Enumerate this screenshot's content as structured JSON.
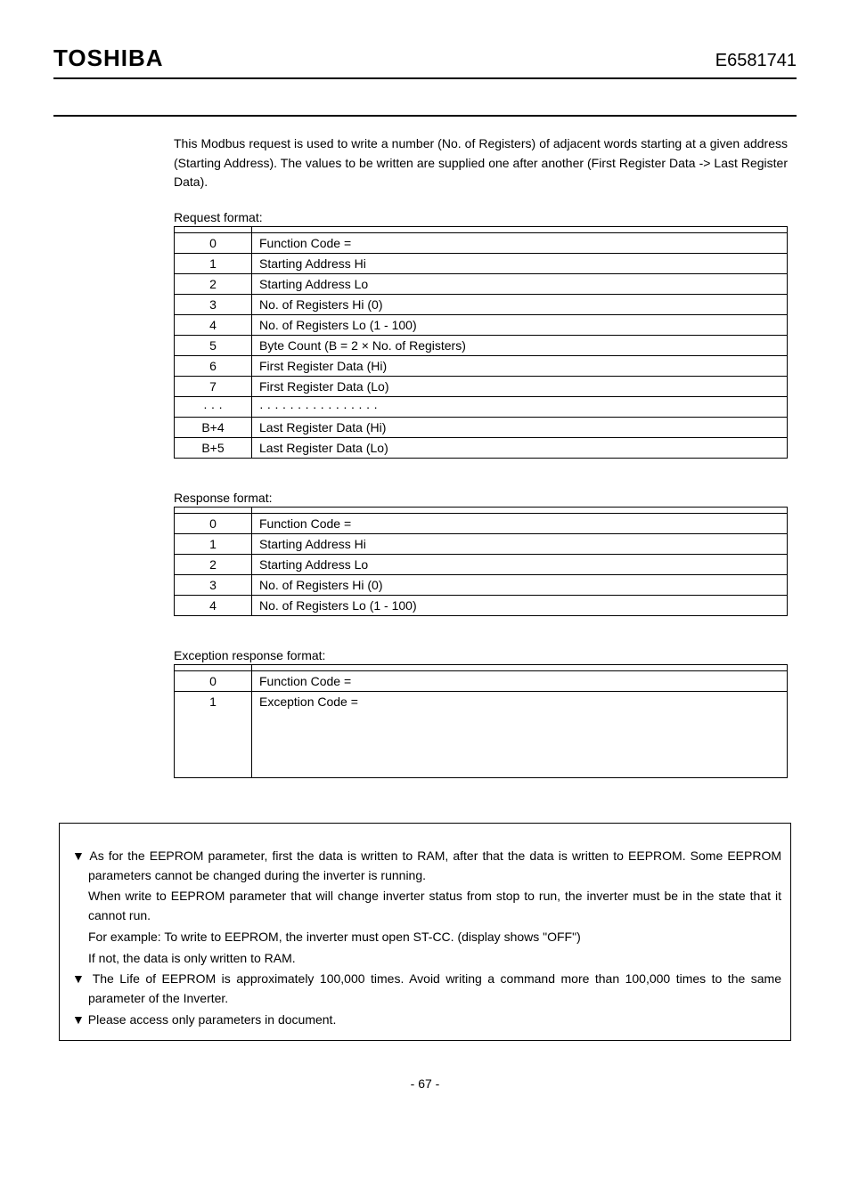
{
  "header": {
    "logo": "TOSHIBA",
    "docnum": "E6581741"
  },
  "intro": "This Modbus request is used to write a number (No. of Registers) of adjacent words starting at a given address (Starting Address). The values to be written are supplied one after another (First Register Data -> Last Register Data).",
  "tables": {
    "request": {
      "caption": "Request format:",
      "rows": [
        {
          "c1": "",
          "c2": ""
        },
        {
          "c1": "0",
          "c2": "Function Code ="
        },
        {
          "c1": "1",
          "c2": "Starting Address Hi"
        },
        {
          "c1": "2",
          "c2": "Starting Address Lo"
        },
        {
          "c1": "3",
          "c2": "No. of Registers Hi (0)"
        },
        {
          "c1": "4",
          "c2": "No. of Registers Lo (1 - 100)"
        },
        {
          "c1": "5",
          "c2": "Byte Count (B = 2 × No. of Registers)"
        },
        {
          "c1": "6",
          "c2": "First Register Data (Hi)"
        },
        {
          "c1": "7",
          "c2": "First Register Data (Lo)"
        },
        {
          "c1": "· · ·",
          "c2": "· · · · · · · · · · · · · · · ·"
        },
        {
          "c1": "B+4",
          "c2": "Last Register Data (Hi)"
        },
        {
          "c1": "B+5",
          "c2": "Last Register Data (Lo)"
        }
      ]
    },
    "response": {
      "caption": "Response format:",
      "rows": [
        {
          "c1": "",
          "c2": ""
        },
        {
          "c1": "0",
          "c2": "Function Code ="
        },
        {
          "c1": "1",
          "c2": "Starting Address Hi"
        },
        {
          "c1": "2",
          "c2": "Starting Address Lo"
        },
        {
          "c1": "3",
          "c2": "No. of Registers Hi (0)"
        },
        {
          "c1": "4",
          "c2": "No. of Registers Lo (1 - 100)"
        }
      ]
    },
    "exception": {
      "caption": "Exception response format:",
      "rows": [
        {
          "c1": "",
          "c2": ""
        },
        {
          "c1": "0",
          "c2": "Function Code ="
        },
        {
          "c1": "1",
          "c2": "Exception Code =",
          "tall": true
        }
      ]
    }
  },
  "notes": {
    "b1a": "▼ As for the EEPROM parameter, first the data is written to RAM, after that the data is written to EEPROM. Some EEPROM parameters cannot be changed during the inverter is running.",
    "b1b": "When write to EEPROM parameter that will change inverter status from stop to run, the inverter must be in the state that it cannot run.",
    "b1c": "For example: To write to EEPROM, the inverter must open ST-CC. (display shows \"OFF\")",
    "b1d": "If not, the data is only written to RAM.",
    "b2": "▼ The Life of EEPROM is approximately 100,000 times. Avoid writing a command more than 100,000 times to the same parameter of the Inverter.",
    "b3": "▼ Please access only parameters in document."
  },
  "footer": "- 67 -"
}
